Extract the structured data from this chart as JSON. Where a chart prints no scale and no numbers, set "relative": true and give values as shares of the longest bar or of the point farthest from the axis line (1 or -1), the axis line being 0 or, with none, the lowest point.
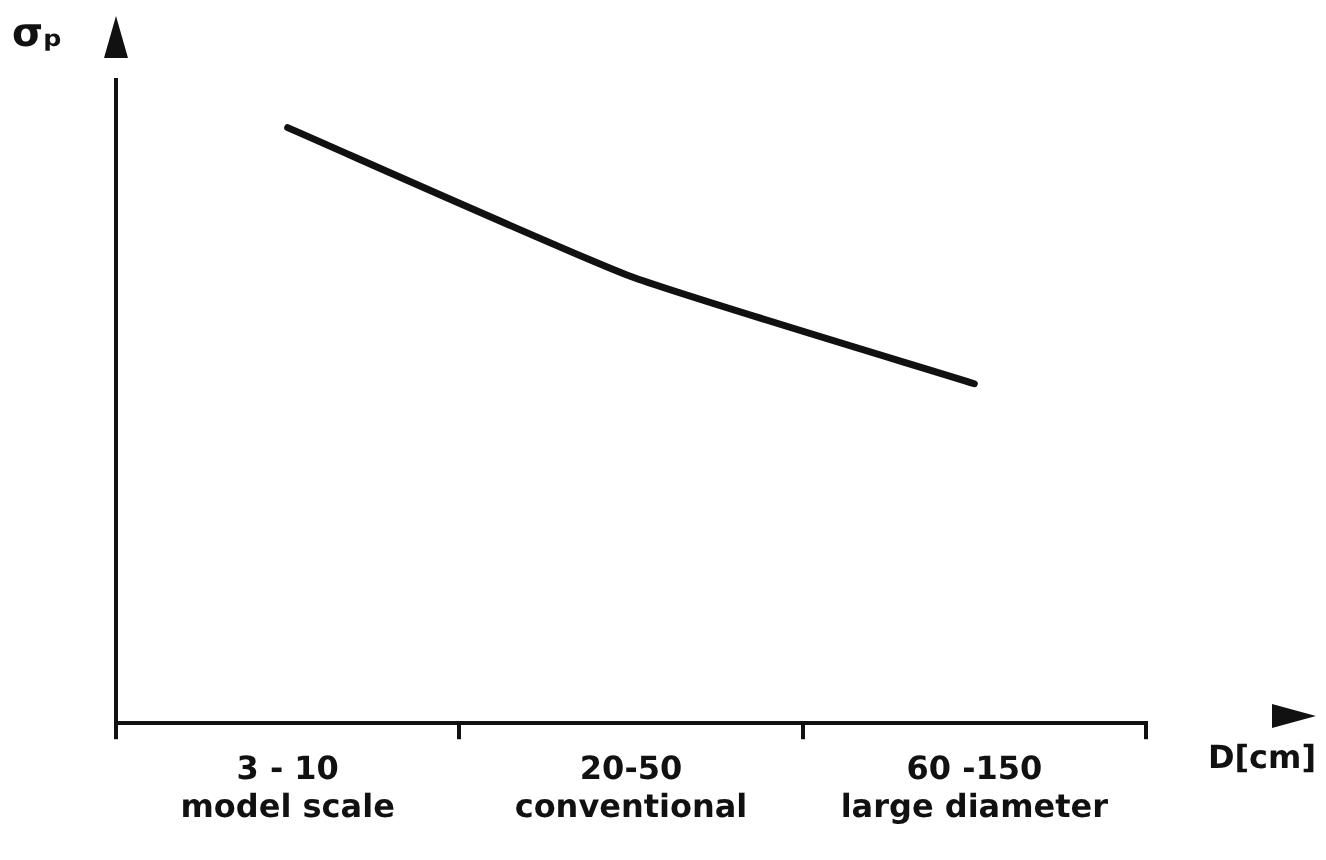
{
  "chart_data": {
    "type": "line",
    "relative": true,
    "ylabel": "σₚ",
    "xlabel": "D[cm]",
    "categories": [
      "3 - 10\nmodel scale",
      "20-50\nconventional",
      "60 -150\nlarge diameter"
    ],
    "series": [
      {
        "color": "#111111",
        "values": [
          1,
          0.75,
          0.57
        ]
      }
    ],
    "grid": false,
    "legend": false,
    "marker": "none",
    "line_style": "solid"
  }
}
